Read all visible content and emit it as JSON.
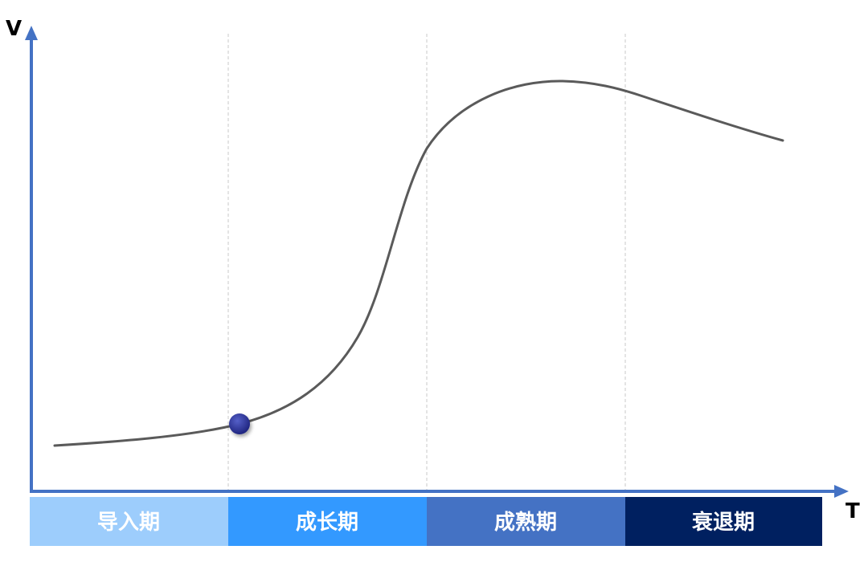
{
  "axes": {
    "y_label": "V",
    "x_label": "T",
    "color": "#4472C4"
  },
  "curve": {
    "color": "#5a5a5a"
  },
  "marker": {
    "color": "#2E3192"
  },
  "stages": [
    {
      "label": "导入期",
      "color": "#9DCDFC"
    },
    {
      "label": "成长期",
      "color": "#3399FF"
    },
    {
      "label": "成熟期",
      "color": "#4472C4"
    },
    {
      "label": "衰退期",
      "color": "#002060"
    }
  ]
}
